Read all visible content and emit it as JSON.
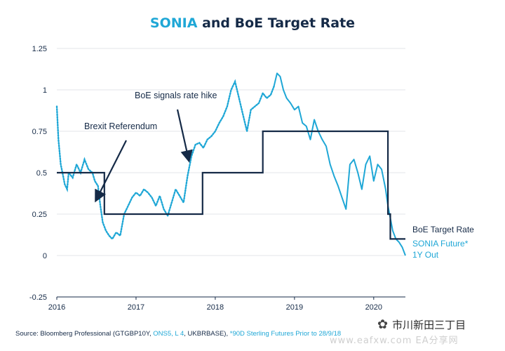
{
  "title": {
    "accent": "SONIA",
    "rest": "and BoE Target Rate"
  },
  "chart_data": {
    "type": "line",
    "title": "SONIA and BoE Target Rate",
    "ylim": [
      -0.25,
      1.25
    ],
    "y_ticks": [
      "1.25",
      "1",
      "0.75",
      "0.5",
      "0.25",
      "0",
      "-0.25"
    ],
    "x_ticks": [
      "2016",
      "2017",
      "2018",
      "2019",
      "2020"
    ],
    "grid": "horizontal",
    "colors": {
      "boe": "#152a47",
      "sonia": "#1fa7d6"
    },
    "series": [
      {
        "name": "BoE Target Rate",
        "style": "step",
        "x": [
          2016.0,
          2016.6,
          2016.6,
          2017.84,
          2017.84,
          2018.6,
          2018.6,
          2020.18,
          2020.18,
          2020.21,
          2020.21,
          2020.4
        ],
        "y": [
          0.5,
          0.5,
          0.25,
          0.25,
          0.5,
          0.5,
          0.75,
          0.75,
          0.25,
          0.25,
          0.1,
          0.1
        ]
      },
      {
        "name": "SONIA Future* 1Y Out",
        "style": "solid_after_2018.74_dotted_before",
        "split_x": 2018.74,
        "x": [
          2016.0,
          2016.02,
          2016.05,
          2016.08,
          2016.1,
          2016.13,
          2016.15,
          2016.2,
          2016.25,
          2016.3,
          2016.35,
          2016.4,
          2016.45,
          2016.48,
          2016.52,
          2016.55,
          2016.58,
          2016.62,
          2016.66,
          2016.7,
          2016.75,
          2016.8,
          2016.85,
          2016.9,
          2016.95,
          2017.0,
          2017.05,
          2017.1,
          2017.15,
          2017.2,
          2017.25,
          2017.3,
          2017.35,
          2017.4,
          2017.45,
          2017.5,
          2017.55,
          2017.6,
          2017.65,
          2017.7,
          2017.75,
          2017.8,
          2017.85,
          2017.9,
          2017.95,
          2018.0,
          2018.05,
          2018.1,
          2018.15,
          2018.2,
          2018.25,
          2018.3,
          2018.35,
          2018.4,
          2018.45,
          2018.5,
          2018.55,
          2018.6,
          2018.65,
          2018.7,
          2018.74,
          2018.78,
          2018.82,
          2018.86,
          2018.9,
          2018.95,
          2019.0,
          2019.05,
          2019.1,
          2019.15,
          2019.2,
          2019.25,
          2019.3,
          2019.35,
          2019.4,
          2019.45,
          2019.5,
          2019.55,
          2019.6,
          2019.65,
          2019.7,
          2019.75,
          2019.8,
          2019.85,
          2019.9,
          2019.95,
          2020.0,
          2020.05,
          2020.1,
          2020.15,
          2020.18,
          2020.2,
          2020.24,
          2020.28,
          2020.32,
          2020.36,
          2020.4
        ],
        "y": [
          0.9,
          0.7,
          0.55,
          0.48,
          0.43,
          0.4,
          0.5,
          0.47,
          0.55,
          0.5,
          0.58,
          0.52,
          0.5,
          0.45,
          0.42,
          0.3,
          0.2,
          0.15,
          0.12,
          0.1,
          0.14,
          0.12,
          0.25,
          0.3,
          0.35,
          0.38,
          0.36,
          0.4,
          0.38,
          0.35,
          0.3,
          0.36,
          0.28,
          0.24,
          0.32,
          0.4,
          0.36,
          0.32,
          0.48,
          0.6,
          0.67,
          0.68,
          0.65,
          0.7,
          0.72,
          0.75,
          0.8,
          0.84,
          0.9,
          1.0,
          1.05,
          0.95,
          0.85,
          0.75,
          0.88,
          0.9,
          0.92,
          0.98,
          0.95,
          0.97,
          1.02,
          1.1,
          1.08,
          1.0,
          0.95,
          0.92,
          0.88,
          0.9,
          0.8,
          0.78,
          0.7,
          0.82,
          0.75,
          0.7,
          0.66,
          0.55,
          0.48,
          0.42,
          0.35,
          0.28,
          0.55,
          0.58,
          0.5,
          0.4,
          0.55,
          0.6,
          0.45,
          0.55,
          0.52,
          0.4,
          0.3,
          0.25,
          0.15,
          0.1,
          0.08,
          0.05,
          0.0
        ]
      }
    ],
    "annotations": [
      {
        "text": "Brexit Referendum",
        "target_x": 2016.48,
        "target_y": 0.32
      },
      {
        "text": "BoE signals rate hike",
        "target_x": 2017.7,
        "target_y": 0.57
      }
    ],
    "end_labels": {
      "boe": "BoE Target Rate",
      "sonia_line1": "SONIA Future*",
      "sonia_line2": "1Y Out"
    }
  },
  "source": {
    "prefix": "Source: Bloomberg Professional (GTGBP10Y, ",
    "highlight1": "ONS5, L 4",
    "middle": ", UKBRBASE), ",
    "highlight2": "*90D Sterling Futures Prior to 28/9/18"
  },
  "watermark": {
    "icon": "wechat-icon",
    "text": "市川新田三丁目",
    "url": "www.eafxw.com EA分享网"
  }
}
